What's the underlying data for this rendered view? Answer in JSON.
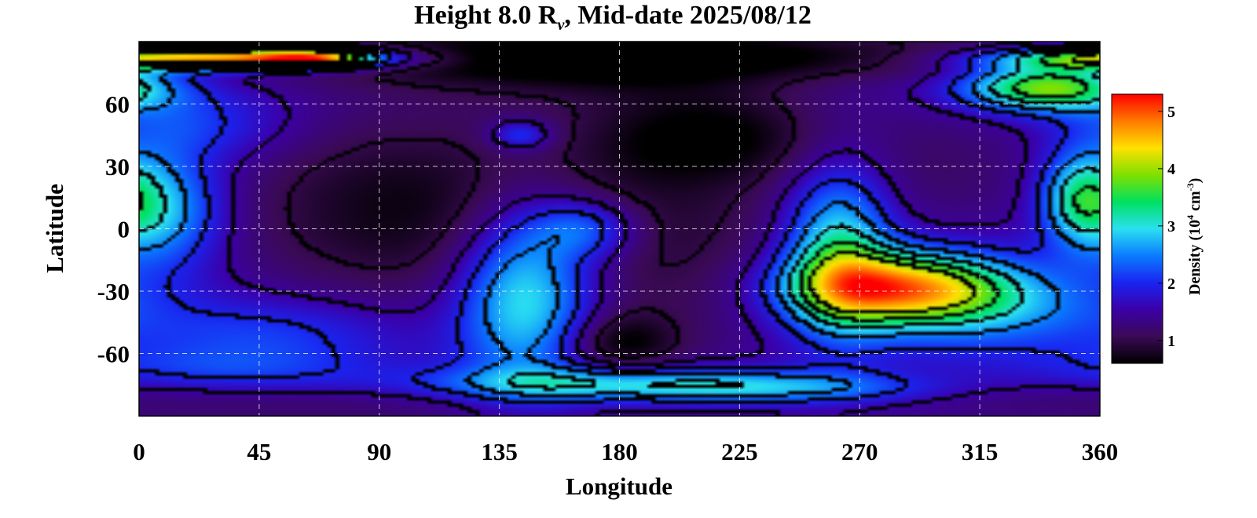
{
  "chart_data": {
    "type": "heatmap",
    "title": {
      "prefix": "Height 8.0 R",
      "subscript": "v",
      "suffix": ", Mid-date 2025/08/12"
    },
    "xlabel": "Longitude",
    "ylabel": "Latitude",
    "xlim": [
      0,
      360
    ],
    "ylim": [
      -90,
      90
    ],
    "xticks": [
      "0",
      "45",
      "90",
      "135",
      "180",
      "225",
      "270",
      "315",
      "360"
    ],
    "yticks": [
      "60",
      "30",
      "0",
      "-30",
      "-60"
    ],
    "grid": true,
    "colorbar": {
      "label_prefix": "Density (10",
      "label_exp": "4",
      "label_mid": " cm",
      "label_exp2": "-3",
      "label_suffix": ")",
      "range": [
        0.6,
        5.3
      ],
      "ticks": [
        "1",
        "2",
        "3",
        "4",
        "5"
      ],
      "colormap": [
        "#000000",
        "#3a0a55",
        "#3b00a8",
        "#1a24f0",
        "#0a7cff",
        "#2ae0f0",
        "#00e060",
        "#7ee000",
        "#ffe000",
        "#ff7a00",
        "#ff0000"
      ]
    },
    "background_level": 1.6,
    "features": [
      {
        "lon": 30,
        "lat": 82,
        "dlon": 45,
        "dlat": 4,
        "value": 3.6
      },
      {
        "lon": 65,
        "lat": 82,
        "dlon": 15,
        "dlat": 3,
        "value": 2.0
      },
      {
        "lon": 170,
        "lat": 84,
        "dlon": 200,
        "dlat": 8,
        "value": -0.8
      },
      {
        "lon": 8,
        "lat": 10,
        "dlon": 16,
        "dlat": 20,
        "value": 1.4
      },
      {
        "lon": 100,
        "lat": 10,
        "dlon": 50,
        "dlat": 35,
        "value": -0.9
      },
      {
        "lon": 200,
        "lat": 0,
        "dlon": 40,
        "dlat": 50,
        "value": -0.6
      },
      {
        "lon": 215,
        "lat": 45,
        "dlon": 30,
        "dlat": 15,
        "value": -0.7
      },
      {
        "lon": 165,
        "lat": 78,
        "dlon": 60,
        "dlat": 12,
        "value": -0.6
      },
      {
        "lon": 145,
        "lat": -30,
        "dlon": 18,
        "dlat": 30,
        "value": 1.8
      },
      {
        "lon": 168,
        "lat": 0,
        "dlon": 14,
        "dlat": 10,
        "value": 1.0
      },
      {
        "lon": 190,
        "lat": -75,
        "dlon": 55,
        "dlat": 6,
        "value": 1.6
      },
      {
        "lon": 180,
        "lat": -55,
        "dlon": 15,
        "dlat": 10,
        "value": -0.8
      },
      {
        "lon": 285,
        "lat": -28,
        "dlon": 28,
        "dlat": 12,
        "value": 2.8
      },
      {
        "lon": 262,
        "lat": -10,
        "dlon": 14,
        "dlat": 28,
        "value": 1.7
      },
      {
        "lon": 315,
        "lat": -38,
        "dlon": 35,
        "dlat": 14,
        "value": 0.9
      },
      {
        "lon": 340,
        "lat": 68,
        "dlon": 22,
        "dlat": 8,
        "value": 2.4
      },
      {
        "lon": 352,
        "lat": 15,
        "dlon": 10,
        "dlat": 15,
        "value": 1.3
      },
      {
        "lon": 300,
        "lat": 30,
        "dlon": 35,
        "dlat": 25,
        "value": -0.4
      },
      {
        "lon": 50,
        "lat": -50,
        "dlon": 35,
        "dlat": 12,
        "value": 0.6
      },
      {
        "lon": 30,
        "lat": -68,
        "dlon": 40,
        "dlat": 8,
        "value": 0.5
      },
      {
        "lon": 250,
        "lat": -78,
        "dlon": 40,
        "dlat": 5,
        "value": 0.6
      },
      {
        "lon": 70,
        "lat": -85,
        "dlon": 80,
        "dlat": 8,
        "value": -0.4
      },
      {
        "lon": 290,
        "lat": -80,
        "dlon": 60,
        "dlat": 8,
        "value": -0.3
      },
      {
        "lon": 20,
        "lat": 50,
        "dlon": 25,
        "dlat": 12,
        "value": 0.6
      },
      {
        "lon": 143,
        "lat": 45,
        "dlon": 8,
        "dlat": 5,
        "value": 0.9
      }
    ]
  }
}
